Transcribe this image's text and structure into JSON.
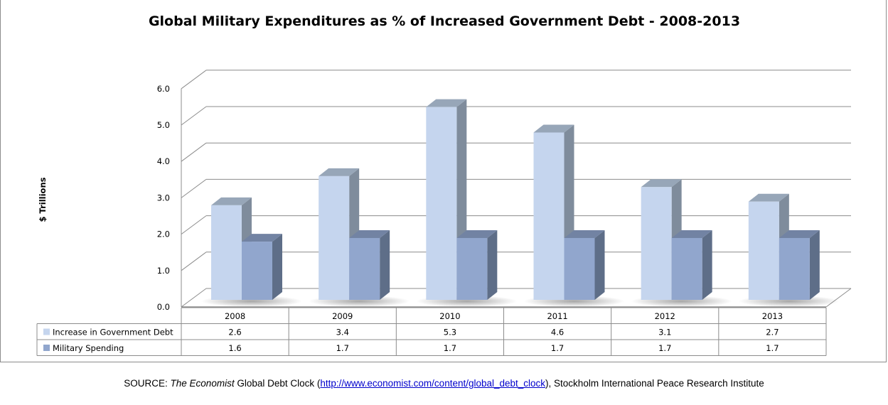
{
  "chart_data": {
    "type": "bar",
    "title": "Global Military Expenditures as % of Increased Government Debt - 2008-2013",
    "xlabel": "",
    "ylabel": "$ Trillions",
    "ylim": [
      0,
      6
    ],
    "yticks": [
      "0.0",
      "1.0",
      "2.0",
      "3.0",
      "4.0",
      "5.0",
      "6.0"
    ],
    "grid": true,
    "style": "3d-clustered-column",
    "legend": "data-table-below",
    "categories": [
      "2008",
      "2009",
      "2010",
      "2011",
      "2012",
      "2013"
    ],
    "series": [
      {
        "name": "Increase in Government Debt",
        "values": [
          2.6,
          3.4,
          5.3,
          4.6,
          3.1,
          2.7
        ],
        "labels": [
          "2.6",
          "3.4",
          "5.3",
          "4.6",
          "3.1",
          "2.7"
        ],
        "color": "#c5d5ee",
        "side_color": "#7f8c9c",
        "top_color": "#97a6b8"
      },
      {
        "name": "Military Spending",
        "values": [
          1.6,
          1.7,
          1.7,
          1.7,
          1.7,
          1.7
        ],
        "labels": [
          "1.6",
          "1.7",
          "1.7",
          "1.7",
          "1.7",
          "1.7"
        ],
        "color": "#91a6cd",
        "side_color": "#5e6e88",
        "top_color": "#7283a3"
      }
    ]
  },
  "source": {
    "prefix": "SOURCE: ",
    "publication": "The Economist",
    "text_after_publication": " Global Debt Clock (",
    "link_text": "http://www.economist.com/content/global_debt_clock",
    "suffix": "), Stockholm International Peace Research Institute"
  }
}
